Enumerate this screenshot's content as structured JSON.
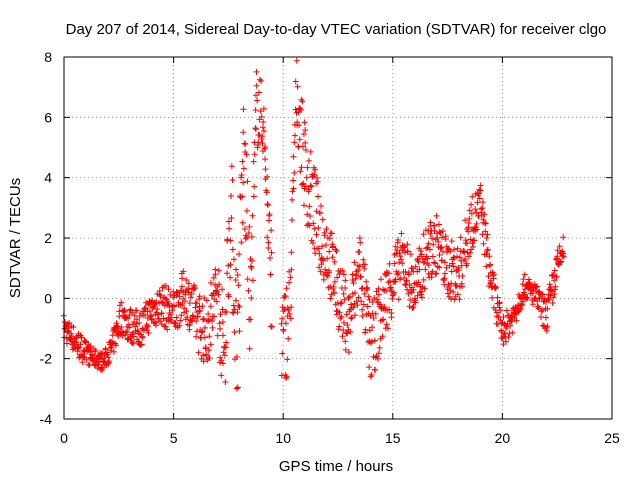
{
  "chart_data": {
    "type": "scatter",
    "title": "Day 207 of 2014, Sidereal Day-to-day VTEC variation (SDTVAR) for receiver clgo",
    "xlabel": "GPS time / hours",
    "ylabel": "SDTVAR / TECUs",
    "xlim": [
      0,
      25
    ],
    "ylim": [
      -4,
      8
    ],
    "xticks": [
      "0",
      "5",
      "10",
      "15",
      "20",
      "25"
    ],
    "yticks": [
      "-4",
      "-2",
      "0",
      "2",
      "4",
      "6",
      "8"
    ],
    "grid": true,
    "marker": "+",
    "color": "#ff0000",
    "series": [
      {
        "name": "SDTVAR",
        "x": [
          0.0,
          0.3,
          0.6,
          1.0,
          1.4,
          1.8,
          2.2,
          2.6,
          3.0,
          3.5,
          4.0,
          4.5,
          5.0,
          5.5,
          6.0,
          6.5,
          7.0,
          7.3,
          7.6,
          7.9,
          8.2,
          8.5,
          8.8,
          9.1,
          9.4,
          10.0,
          10.3,
          10.6,
          10.9,
          11.2,
          11.6,
          12.0,
          12.5,
          13.0,
          13.5,
          14.0,
          14.5,
          15.0,
          15.5,
          16.0,
          16.5,
          17.0,
          17.5,
          18.0,
          18.5,
          19.0,
          19.5,
          20.0,
          20.5,
          21.0,
          21.5,
          22.0,
          22.5,
          22.8
        ],
        "y": [
          -1.0,
          -1.2,
          -1.5,
          -1.8,
          -2.0,
          -2.1,
          -1.6,
          -0.6,
          -0.9,
          -1.0,
          -0.4,
          -0.2,
          -0.5,
          0.2,
          -0.6,
          -1.2,
          0.3,
          -2.0,
          3.2,
          -1.5,
          5.0,
          -0.4,
          6.5,
          5.8,
          1.0,
          -1.4,
          -0.5,
          6.9,
          4.8,
          3.5,
          2.4,
          1.6,
          0.2,
          -0.8,
          1.1,
          -1.6,
          -0.4,
          0.6,
          1.3,
          0.2,
          1.4,
          1.8,
          1.0,
          0.8,
          2.3,
          3.1,
          0.5,
          -1.1,
          -0.6,
          0.4,
          0.1,
          -0.6,
          1.0,
          1.7
        ],
        "band": [
          0.5,
          0.4,
          0.5,
          0.4,
          0.3,
          0.3,
          0.4,
          0.6,
          0.6,
          0.6,
          0.6,
          0.7,
          0.8,
          0.8,
          1.0,
          1.2,
          1.5,
          1.8,
          2.2,
          2.4,
          2.2,
          2.0,
          1.6,
          1.0,
          1.8,
          1.6,
          1.8,
          1.2,
          1.6,
          1.6,
          1.5,
          1.3,
          1.2,
          1.2,
          1.3,
          1.3,
          1.2,
          1.1,
          1.0,
          1.0,
          1.0,
          1.0,
          1.0,
          1.0,
          0.9,
          0.8,
          0.7,
          0.5,
          0.5,
          0.4,
          0.4,
          0.6,
          0.6,
          0.4
        ],
        "gaps": [
          [
            9.5,
            9.9
          ]
        ]
      }
    ]
  }
}
